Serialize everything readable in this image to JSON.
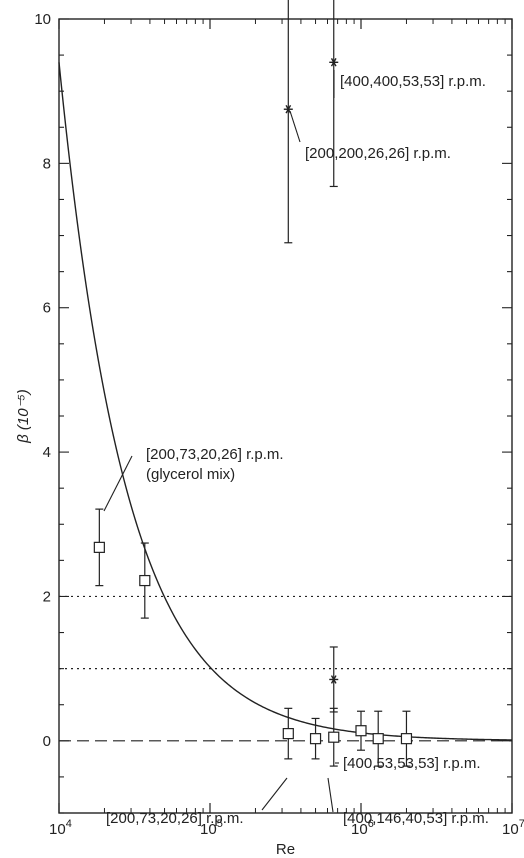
{
  "chart_data": {
    "type": "scatter",
    "xlabel": "Re",
    "ylabel": "β (10⁻⁵)",
    "xscale": "log",
    "xlim": [
      10000,
      10000000
    ],
    "ylim": [
      -1,
      10
    ],
    "x_ticks": [
      {
        "value": 10000,
        "base": "10",
        "exp": "4"
      },
      {
        "value": 100000,
        "base": "10",
        "exp": "5"
      },
      {
        "value": 1000000,
        "base": "10",
        "exp": "6"
      },
      {
        "value": 10000000,
        "base": "10",
        "exp": "7"
      }
    ],
    "y_ticks": [
      0,
      2,
      4,
      6,
      8,
      10
    ],
    "reference_lines": [
      {
        "y": 2,
        "style": "dotted"
      },
      {
        "y": 1,
        "style": "dotted"
      },
      {
        "y": 0,
        "style": "dashed"
      }
    ],
    "fit_curve": {
      "style": "solid",
      "x_start": 10000,
      "y_start": 9.4,
      "decay_per_decade": 0.0222
    },
    "series": [
      {
        "marker": "square",
        "points": [
          {
            "x": 18500,
            "y": 2.68,
            "err": 0.53
          },
          {
            "x": 37000,
            "y": 2.22,
            "err": 0.52
          },
          {
            "x": 330000,
            "y": 0.1,
            "err": 0.35
          },
          {
            "x": 500000,
            "y": 0.03,
            "err": 0.28
          },
          {
            "x": 660000,
            "y": 0.05,
            "err": 0.4
          },
          {
            "x": 1000000,
            "y": 0.14,
            "err": 0.27
          },
          {
            "x": 1300000,
            "y": 0.03,
            "err": 0.38
          },
          {
            "x": 2000000,
            "y": 0.03,
            "err": 0.38
          }
        ]
      },
      {
        "marker": "asterisk",
        "points": [
          {
            "x": 330000,
            "y": 8.75,
            "err": 1.85
          },
          {
            "x": 660000,
            "y": 9.4,
            "err": 1.72
          },
          {
            "x": 660000,
            "y": 0.85,
            "err": 0.45
          }
        ]
      }
    ],
    "annotations": [
      {
        "lines": [
          "[400,400,53,53] r.p.m."
        ],
        "x": 680000,
        "y": 9.4
      },
      {
        "lines": [
          "[200,200,26,26] r.p.m."
        ],
        "x": 340000,
        "y": 8.6
      },
      {
        "lines": [
          "[200,73,20,26] r.p.m.",
          "(glycerol mix)"
        ],
        "x": 19000,
        "y": 2.8
      },
      {
        "lines": [
          "[400,53,53,53] r.p.m."
        ],
        "x": 700000,
        "y": 0.85
      },
      {
        "lines": [
          "[200,73,20,26] r.p.m."
        ],
        "x": 300000,
        "y": 0
      },
      {
        "lines": [
          "[400,146,40,53] r.p.m."
        ],
        "x": 650000,
        "y": -0.05
      }
    ]
  }
}
